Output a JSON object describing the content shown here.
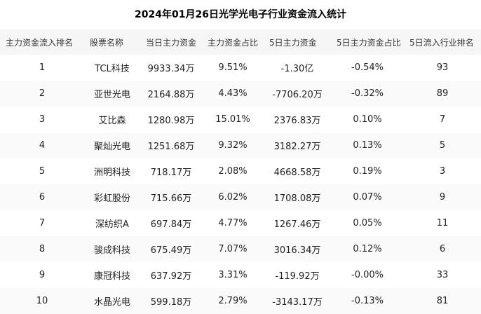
{
  "title": "2024年01月26日光学光电子行业资金流入统计",
  "table": {
    "columns": [
      "主力资金流入排名",
      "股票名称",
      "当日主力资金",
      "主力资金占比",
      "5日主力资金",
      "5日主力资金占比",
      "5日流入行业排名"
    ],
    "rows": [
      [
        "1",
        "TCL科技",
        "9933.34万",
        "9.51%",
        "-1.30亿",
        "-0.54%",
        "93"
      ],
      [
        "2",
        "亚世光电",
        "2164.88万",
        "4.43%",
        "-7706.20万",
        "-0.32%",
        "89"
      ],
      [
        "3",
        "艾比森",
        "1280.98万",
        "15.01%",
        "2376.83万",
        "0.10%",
        "7"
      ],
      [
        "4",
        "聚灿光电",
        "1251.68万",
        "9.32%",
        "3182.27万",
        "0.13%",
        "5"
      ],
      [
        "5",
        "洲明科技",
        "718.17万",
        "2.08%",
        "4668.58万",
        "0.19%",
        "3"
      ],
      [
        "6",
        "彩虹股份",
        "715.66万",
        "6.02%",
        "1708.08万",
        "0.07%",
        "9"
      ],
      [
        "7",
        "深纺织A",
        "697.84万",
        "4.77%",
        "1267.46万",
        "0.05%",
        "11"
      ],
      [
        "8",
        "骏成科技",
        "675.49万",
        "7.07%",
        "3016.34万",
        "0.12%",
        "6"
      ],
      [
        "9",
        "康冠科技",
        "637.92万",
        "3.31%",
        "-119.92万",
        "-0.00%",
        "33"
      ],
      [
        "10",
        "水晶光电",
        "599.18万",
        "2.79%",
        "-3143.17万",
        "-0.13%",
        "81"
      ]
    ]
  },
  "chart_data": {
    "type": "table",
    "title": "2024年01月26日光学光电子行业资金流入统计",
    "columns": [
      "主力资金流入排名",
      "股票名称",
      "当日主力资金",
      "主力资金占比",
      "5日主力资金",
      "5日主力资金占比",
      "5日流入行业排名"
    ],
    "rows": [
      {
        "rank": 1,
        "stock": "TCL科技",
        "day_main_capital": "9933.34万",
        "main_capital_ratio_pct": 9.51,
        "five_day_main_capital": "-1.30亿",
        "five_day_ratio_pct": -0.54,
        "five_day_industry_rank": 93
      },
      {
        "rank": 2,
        "stock": "亚世光电",
        "day_main_capital": "2164.88万",
        "main_capital_ratio_pct": 4.43,
        "five_day_main_capital": "-7706.20万",
        "five_day_ratio_pct": -0.32,
        "five_day_industry_rank": 89
      },
      {
        "rank": 3,
        "stock": "艾比森",
        "day_main_capital": "1280.98万",
        "main_capital_ratio_pct": 15.01,
        "five_day_main_capital": "2376.83万",
        "five_day_ratio_pct": 0.1,
        "five_day_industry_rank": 7
      },
      {
        "rank": 4,
        "stock": "聚灿光电",
        "day_main_capital": "1251.68万",
        "main_capital_ratio_pct": 9.32,
        "five_day_main_capital": "3182.27万",
        "five_day_ratio_pct": 0.13,
        "five_day_industry_rank": 5
      },
      {
        "rank": 5,
        "stock": "洲明科技",
        "day_main_capital": "718.17万",
        "main_capital_ratio_pct": 2.08,
        "five_day_main_capital": "4668.58万",
        "five_day_ratio_pct": 0.19,
        "five_day_industry_rank": 3
      },
      {
        "rank": 6,
        "stock": "彩虹股份",
        "day_main_capital": "715.66万",
        "main_capital_ratio_pct": 6.02,
        "five_day_main_capital": "1708.08万",
        "five_day_ratio_pct": 0.07,
        "five_day_industry_rank": 9
      },
      {
        "rank": 7,
        "stock": "深纺织A",
        "day_main_capital": "697.84万",
        "main_capital_ratio_pct": 4.77,
        "five_day_main_capital": "1267.46万",
        "five_day_ratio_pct": 0.05,
        "five_day_industry_rank": 11
      },
      {
        "rank": 8,
        "stock": "骏成科技",
        "day_main_capital": "675.49万",
        "main_capital_ratio_pct": 7.07,
        "five_day_main_capital": "3016.34万",
        "five_day_ratio_pct": 0.12,
        "five_day_industry_rank": 6
      },
      {
        "rank": 9,
        "stock": "康冠科技",
        "day_main_capital": "637.92万",
        "main_capital_ratio_pct": 3.31,
        "five_day_main_capital": "-119.92万",
        "five_day_ratio_pct": -0.0,
        "five_day_industry_rank": 33
      },
      {
        "rank": 10,
        "stock": "水晶光电",
        "day_main_capital": "599.18万",
        "main_capital_ratio_pct": 2.79,
        "five_day_main_capital": "-3143.17万",
        "five_day_ratio_pct": -0.13,
        "five_day_industry_rank": 81
      }
    ],
    "colors": {
      "header_bg": "#f6f6f6",
      "row_stripe_bg": "#fafafa",
      "row_bg": "#ffffff",
      "text": "#222222"
    }
  }
}
